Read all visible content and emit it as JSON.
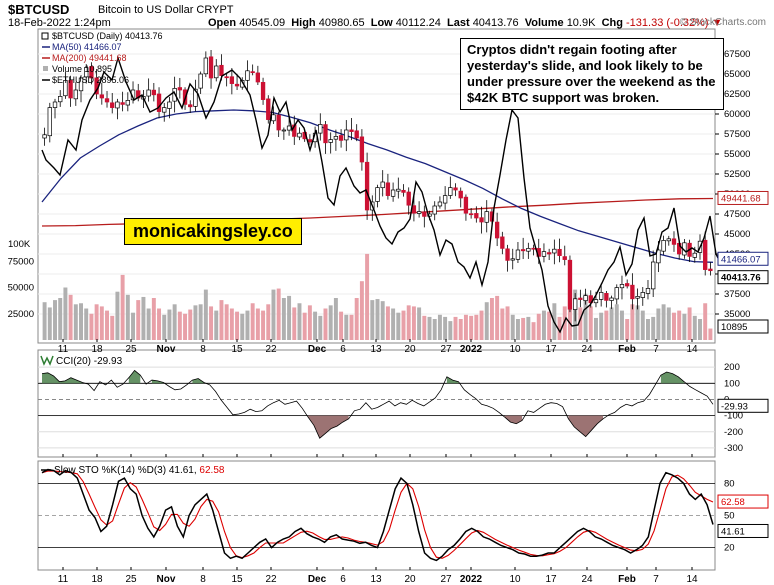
{
  "header": {
    "symbol": "$BTCUSD",
    "name": "Bitcoin to US Dollar  CRYPT",
    "date": "18-Feb-2022 1:24pm",
    "open_label": "Open",
    "open": "40545.09",
    "high_label": "High",
    "high": "40980.65",
    "low_label": "Low",
    "low": "40112.24",
    "last_label": "Last",
    "last": "40413.76",
    "volume_label": "Volume",
    "volume": "10.9K",
    "chg_label": "Chg",
    "chg": "-131.33 (-0.32%)",
    "copyright": "© StockCharts.com"
  },
  "legend": {
    "main": "$BTCUSD (Daily) 40413.76",
    "ma50": "MA(50) 41466.07",
    "ma200": "MA(200) 49441.68",
    "volume": "Volume 10,895",
    "eth": "$ETHUSD 2895.06"
  },
  "annotation": "Cryptos didn't regain footing after yesterday's slide, and look likely to be under pressure over the weekend as the $42K BTC support was broken.",
  "brand": "monicakingsley.co",
  "tags": {
    "ma200": "49441.68",
    "ma50": "41466.07",
    "last": "40413.76",
    "volume": "10895",
    "cci": "-29.93",
    "sto_d": "62.58",
    "sto_k": "41.61"
  },
  "panels": {
    "cci_label": "CCI(20) -29.93",
    "sto_label_prefix": "Slow STO %K(14) %D(3) 41.61,",
    "sto_label_d": " 62.58"
  },
  "colors": {
    "up": "#ffffff",
    "down": "#cc1133",
    "ma50": "#1a237e",
    "ma200": "#b71c1c",
    "eth": "#000000",
    "vol_up": "#b0b0b0",
    "vol_down": "#e8a0a8",
    "cci_pos": "#4a7f4a",
    "cci_neg": "#8b5a5a",
    "sto_k": "#000000",
    "sto_d": "#dd0000"
  },
  "chart_data": {
    "type": "candlestick",
    "title": "$BTCUSD Bitcoin to US Dollar (Daily)",
    "x_tick_labels": [
      "11",
      "18",
      "25",
      "Nov",
      "8",
      "15",
      "22",
      "Dec",
      "6",
      "13",
      "20",
      "27",
      "2022",
      "10",
      "17",
      "24",
      "Feb",
      "7",
      "14"
    ],
    "price_axis": {
      "ticks": [
        67500,
        65000,
        62500,
        60000,
        57500,
        55000,
        52500,
        50000,
        47500,
        45000,
        42500,
        40000,
        37500,
        35000
      ],
      "range": [
        31500,
        70500
      ]
    },
    "volume_axis": {
      "ticks": [
        75000,
        50000,
        25000
      ],
      "top_label": "100K",
      "range": [
        0,
        100000
      ]
    },
    "close_series": [
      57400,
      60800,
      61500,
      62200,
      64200,
      62000,
      63000,
      64500,
      65800,
      64500,
      62500,
      62000,
      61500,
      60800,
      61500,
      61200,
      61700,
      63000,
      62000,
      62200,
      63000,
      62400,
      60300,
      60800,
      61500,
      63200,
      63000,
      61200,
      60900,
      63100,
      65000,
      67000,
      64500,
      66000,
      64800,
      64600,
      63800,
      63500,
      64200,
      65400,
      65200,
      64000,
      61800,
      59300,
      59900,
      58000,
      58000,
      58500,
      57200,
      57600,
      56900,
      56500,
      57600,
      58700,
      56400,
      56800,
      57200,
      56700,
      58000,
      57800,
      57000,
      54000,
      48000,
      49000,
      50800,
      51500,
      49800,
      50500,
      50600,
      50200,
      48600,
      47600,
      47800,
      47200,
      47500,
      48500,
      49000,
      49800,
      50800,
      50500,
      49500,
      47600,
      47500,
      47000,
      46500,
      47800,
      46600,
      44500,
      43200,
      41700,
      41900,
      43000,
      42900,
      43200,
      43100,
      42200,
      42800,
      42500,
      43100,
      42300,
      41800,
      35600,
      36900,
      36800,
      37300,
      36400,
      36800,
      37700,
      36700,
      37000,
      38300,
      38700,
      38500,
      36900,
      37200,
      37700,
      38200,
      41500,
      43000,
      44200,
      44400,
      43700,
      42500,
      43900,
      42200,
      42600,
      44100,
      40550,
      40413
    ],
    "ma50_series": [
      49000,
      52000,
      54500,
      56000,
      57400,
      58500,
      59500,
      60000,
      60300,
      60400,
      60500,
      60400,
      60200,
      59600,
      58900,
      58000,
      57200,
      56300,
      55500,
      54600,
      53800,
      52800,
      51800,
      50700,
      49400,
      48200,
      47200,
      46300,
      45400,
      44700,
      44000,
      43300,
      42600,
      42000,
      41550,
      41466
    ],
    "ma200_series": [
      46000,
      46050,
      46200,
      46300,
      46400,
      46550,
      46700,
      46850,
      47000,
      47200,
      47400,
      47650,
      47900,
      48150,
      48400,
      48600,
      48850,
      49050,
      49250,
      49400,
      49441
    ],
    "eth_overlay_series": "ETHUSD daily close drawn on a secondary scale, last 2895.06",
    "volume_series": [
      36000,
      31000,
      38000,
      40000,
      50000,
      43000,
      34000,
      35000,
      30000,
      25000,
      34000,
      32000,
      28000,
      23000,
      46000,
      62000,
      43000,
      26000,
      38000,
      41000,
      30000,
      40000,
      30000,
      24000,
      29000,
      34000,
      27000,
      25000,
      29000,
      33000,
      34000,
      48000,
      32000,
      28000,
      38000,
      34000,
      30000,
      27000,
      25000,
      28000,
      35000,
      30000,
      28000,
      34000,
      48000,
      49000,
      40000,
      42000,
      31000,
      35000,
      26000,
      33000,
      27000,
      23000,
      30000,
      33000,
      40000,
      27000,
      24000,
      24000,
      40000,
      56000,
      82000,
      38000,
      39000,
      37000,
      32000,
      30000,
      26000,
      28000,
      33000,
      32000,
      31000,
      23000,
      22000,
      20000,
      24000,
      22000,
      18000,
      22000,
      20000,
      24000,
      23000,
      24000,
      28000,
      36000,
      40000,
      42000,
      30000,
      32000,
      24000,
      20000,
      21000,
      22000,
      17000,
      25000,
      28000,
      27000,
      35000,
      22000,
      32000,
      62000,
      48000,
      31000,
      44000,
      32000,
      21000,
      26000,
      28000,
      31000,
      34000,
      28000,
      20000,
      34000,
      33000,
      28000,
      20000,
      22000,
      30000,
      34000,
      31000,
      26000,
      28000,
      25000,
      31000,
      23000,
      20000,
      35000,
      10895
    ],
    "cci": {
      "value": -29.93,
      "ticks": [
        200,
        100,
        0,
        -100,
        -200,
        -300
      ],
      "range": [
        -350,
        300
      ]
    },
    "slow_sto": {
      "k": 41.61,
      "d": 62.58,
      "ticks": [
        80,
        50,
        20
      ],
      "range": [
        0,
        100
      ]
    }
  }
}
